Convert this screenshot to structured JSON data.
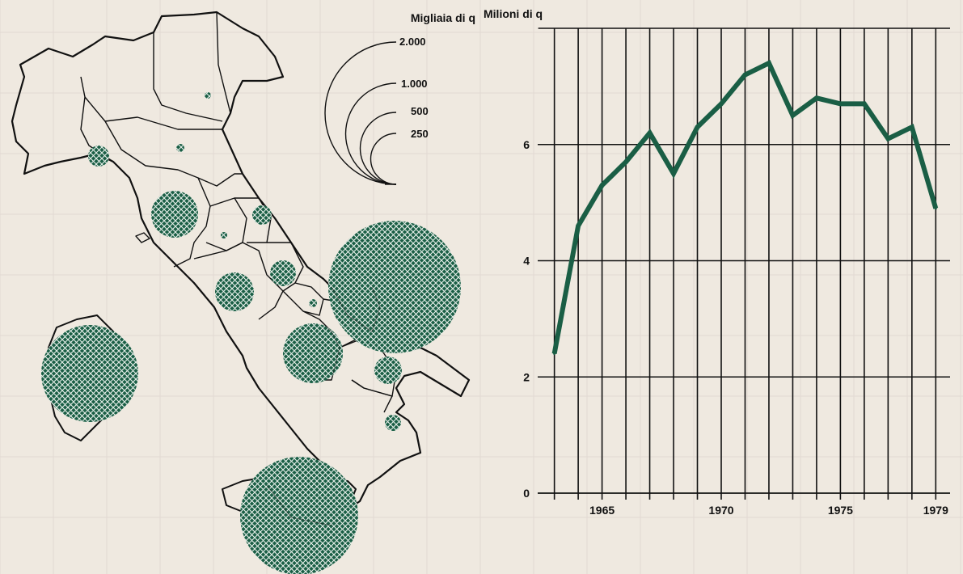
{
  "colors": {
    "paper": "#efe9e0",
    "ink": "#111111",
    "accent_green": "#1a5e45",
    "faint_grid": "#d9ccc8"
  },
  "map": {
    "legend_title": "Migliaia di q",
    "legend_values": [
      "2.000",
      "1.000",
      "500",
      "250"
    ],
    "symbol": "proportional-circle-hatched"
  },
  "chart_data": {
    "type": "line",
    "ylabel": "Milioni di q",
    "xlim": [
      1962.3,
      1979.6
    ],
    "ylim": [
      0,
      8
    ],
    "x_tick_labels": [
      "1965",
      "1970",
      "1975",
      "1979"
    ],
    "x_ticks": [
      1965,
      1970,
      1975,
      1979
    ],
    "y_ticks": [
      0,
      2,
      4,
      6
    ],
    "y_tick_labels": [
      "0",
      "2",
      "4",
      "6"
    ],
    "grid": "vertical per year, horizontal at 2, 4, 6",
    "series": [
      {
        "x": [
          1963,
          1964,
          1965,
          1966,
          1967,
          1968,
          1969,
          1970,
          1971,
          1972,
          1973,
          1974,
          1975,
          1976,
          1977,
          1978,
          1979
        ],
        "y": [
          2.4,
          4.6,
          5.3,
          5.7,
          6.2,
          5.5,
          6.3,
          6.7,
          7.2,
          7.4,
          6.5,
          6.8,
          6.7,
          6.7,
          6.1,
          6.3,
          4.9
        ]
      }
    ]
  }
}
